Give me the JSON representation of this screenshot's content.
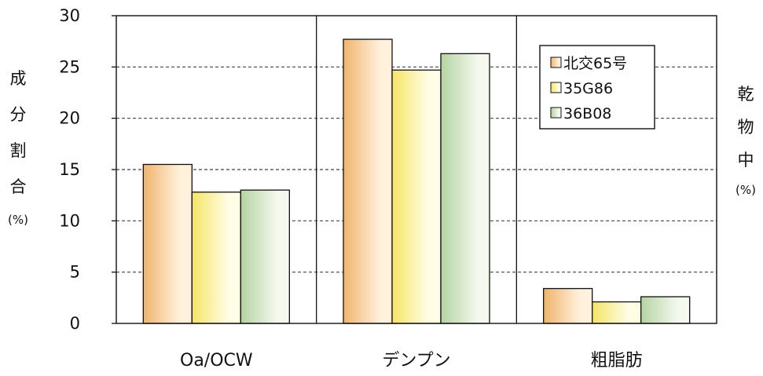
{
  "chart_data": {
    "type": "bar",
    "categories": [
      "Oa/OCW",
      "デンプン",
      "粗脂肪"
    ],
    "series": [
      {
        "name": "北交65号",
        "values": [
          15.5,
          27.7,
          3.4
        ]
      },
      {
        "name": "35G86",
        "values": [
          12.8,
          24.7,
          2.1
        ]
      },
      {
        "name": "36B08",
        "values": [
          13.0,
          26.3,
          2.6
        ]
      }
    ],
    "ylim": [
      0,
      30
    ],
    "yticks": [
      0,
      5,
      10,
      15,
      20,
      25,
      30
    ],
    "ylabel": "成分割合",
    "ylabel_unit": "(%)",
    "y2label": "乾物中",
    "y2label_unit": "(%)",
    "grid": "horizontal-dashed",
    "legend_position": "top-right",
    "colors": {
      "北交65号": {
        "light": "#fff1dc",
        "dark": "#f0b46e"
      },
      "35G86": {
        "light": "#fffde6",
        "dark": "#f5e466"
      },
      "36B08": {
        "light": "#f4f8ee",
        "dark": "#b5d3a2"
      }
    }
  }
}
